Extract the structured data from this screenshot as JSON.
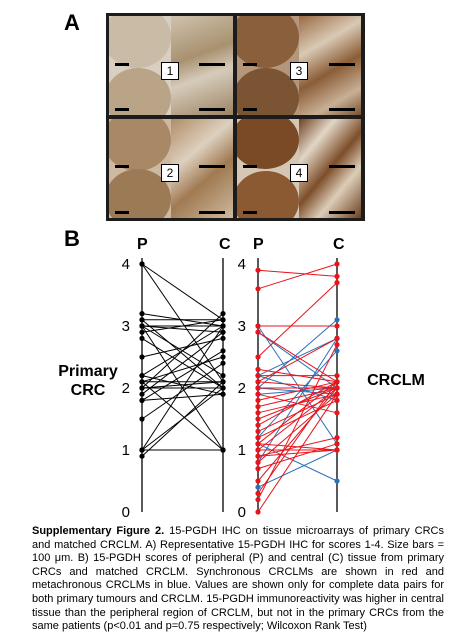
{
  "panel_a": {
    "label": "A",
    "scores": [
      "1",
      "3",
      "2",
      "4"
    ]
  },
  "panel_b": {
    "label": "B",
    "axis_left": "P",
    "axis_right": "C",
    "left_side_label_line1": "Primary",
    "left_side_label_line2": "CRC",
    "right_side_label": "CRCLM",
    "tick_labels": [
      "0",
      "1",
      "2",
      "3",
      "4"
    ]
  },
  "chart_data": [
    {
      "type": "line",
      "title": "Primary CRC",
      "x": [
        "P",
        "C"
      ],
      "ylim": [
        0,
        4
      ],
      "color": "#000000",
      "pairs": [
        [
          4,
          3.1
        ],
        [
          4,
          2.1
        ],
        [
          3.2,
          3.0
        ],
        [
          3.1,
          2.0
        ],
        [
          3.1,
          3.1
        ],
        [
          3.0,
          1.0
        ],
        [
          3.0,
          2.9
        ],
        [
          3.0,
          2.2
        ],
        [
          2.9,
          3.1
        ],
        [
          2.8,
          2.0
        ],
        [
          2.5,
          2.8
        ],
        [
          2.2,
          3.0
        ],
        [
          2.2,
          1.9
        ],
        [
          2.1,
          2.5
        ],
        [
          2.1,
          1.0
        ],
        [
          2.0,
          3.2
        ],
        [
          2.0,
          2.0
        ],
        [
          2.0,
          2.1
        ],
        [
          1.9,
          2.9
        ],
        [
          1.8,
          1.9
        ],
        [
          1.5,
          2.4
        ],
        [
          1.0,
          2.0
        ],
        [
          1.0,
          3.0
        ],
        [
          1.0,
          1.0
        ],
        [
          0.9,
          2.1
        ],
        [
          1.8,
          2.6
        ],
        [
          3.0,
          3.0
        ],
        [
          2.1,
          2.1
        ]
      ]
    },
    {
      "type": "line",
      "title": "CRCLM",
      "x": [
        "P",
        "C"
      ],
      "ylim": [
        0,
        4
      ],
      "series": [
        {
          "name": "Synchronous",
          "color": "#e8141c",
          "pairs": [
            [
              3.6,
              4.0
            ],
            [
              3.9,
              3.8
            ],
            [
              3.0,
              3.0
            ],
            [
              2.9,
              2.1
            ],
            [
              2.5,
              3.7
            ],
            [
              2.3,
              2.1
            ],
            [
              2.2,
              2.2
            ],
            [
              2.1,
              2.0
            ],
            [
              2.0,
              2.0
            ],
            [
              1.9,
              1.6
            ],
            [
              1.8,
              2.1
            ],
            [
              1.7,
              2.0
            ],
            [
              1.6,
              1.9
            ],
            [
              1.5,
              2.0
            ],
            [
              1.4,
              2.1
            ],
            [
              1.3,
              1.9
            ],
            [
              1.2,
              1.8
            ],
            [
              1.1,
              1.0
            ],
            [
              1.0,
              1.0
            ],
            [
              1.0,
              2.0
            ],
            [
              0.9,
              1.0
            ],
            [
              0.9,
              1.2
            ],
            [
              0.8,
              1.9
            ],
            [
              0.7,
              1.1
            ],
            [
              0.5,
              2.0
            ],
            [
              0.3,
              2.1
            ],
            [
              0.0,
              1.9
            ],
            [
              0.2,
              2.7
            ],
            [
              2.1,
              2.8
            ],
            [
              1.1,
              2.1
            ]
          ]
        },
        {
          "name": "Metachronous",
          "color": "#2a72b8",
          "pairs": [
            [
              3.0,
              1.1
            ],
            [
              2.9,
              2.0
            ],
            [
              2.2,
              2.8
            ],
            [
              2.0,
              1.9
            ],
            [
              2.0,
              3.1
            ],
            [
              1.9,
              2.0
            ],
            [
              1.1,
              0.5
            ],
            [
              0.8,
              2.8
            ],
            [
              1.2,
              2.6
            ],
            [
              0.4,
              1.0
            ],
            [
              2.2,
              1.8
            ]
          ]
        }
      ]
    }
  ],
  "caption": {
    "heading": "Supplementary Figure 2.",
    "body": " 15-PGDH IHC on tissue microarrays of primary CRCs and matched CRCLM. A) Representative 15-PGDH IHC for scores 1-4. Size bars = 100 μm. B) 15-PGDH scores of peripheral (P) and central (C) tissue from primary CRCs and matched CRCLM. Synchronous CRCLMs are shown in red and metachronous CRCLMs in blue. Values are shown only for complete data pairs for both primary tumours and CRCLM. 15-PGDH immunoreactivity was higher in central tissue than the peripheral region of CRCLM, but not in the primary CRCs from the same patients (p<0.01 and p=0.75 respectively; Wilcoxon Rank Test)"
  }
}
